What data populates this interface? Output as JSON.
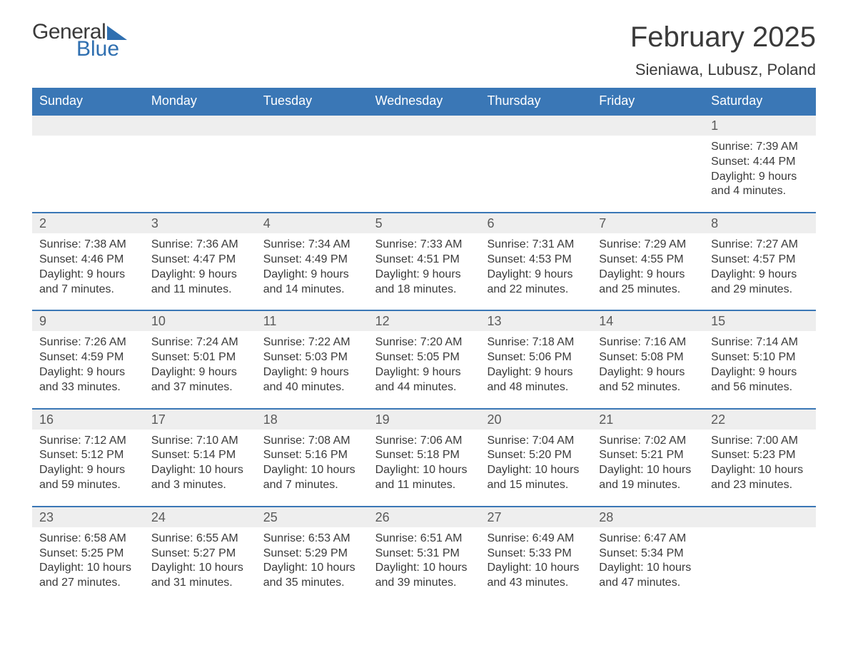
{
  "logo": {
    "text1": "General",
    "text2": "Blue"
  },
  "title": "February 2025",
  "location": "Sieniawa, Lubusz, Poland",
  "colors": {
    "header_bg": "#3a77b6",
    "header_text": "#ffffff",
    "daynum_bg": "#eeeeee",
    "daynum_border": "#3a77b6",
    "body_text": "#3a3a3a",
    "logo_blue": "#2f6fb0"
  },
  "days_of_week": [
    "Sunday",
    "Monday",
    "Tuesday",
    "Wednesday",
    "Thursday",
    "Friday",
    "Saturday"
  ],
  "weeks": [
    [
      {},
      {},
      {},
      {},
      {},
      {},
      {
        "n": "1",
        "sunrise": "Sunrise: 7:39 AM",
        "sunset": "Sunset: 4:44 PM",
        "daylight": "Daylight: 9 hours and 4 minutes."
      }
    ],
    [
      {
        "n": "2",
        "sunrise": "Sunrise: 7:38 AM",
        "sunset": "Sunset: 4:46 PM",
        "daylight": "Daylight: 9 hours and 7 minutes."
      },
      {
        "n": "3",
        "sunrise": "Sunrise: 7:36 AM",
        "sunset": "Sunset: 4:47 PM",
        "daylight": "Daylight: 9 hours and 11 minutes."
      },
      {
        "n": "4",
        "sunrise": "Sunrise: 7:34 AM",
        "sunset": "Sunset: 4:49 PM",
        "daylight": "Daylight: 9 hours and 14 minutes."
      },
      {
        "n": "5",
        "sunrise": "Sunrise: 7:33 AM",
        "sunset": "Sunset: 4:51 PM",
        "daylight": "Daylight: 9 hours and 18 minutes."
      },
      {
        "n": "6",
        "sunrise": "Sunrise: 7:31 AM",
        "sunset": "Sunset: 4:53 PM",
        "daylight": "Daylight: 9 hours and 22 minutes."
      },
      {
        "n": "7",
        "sunrise": "Sunrise: 7:29 AM",
        "sunset": "Sunset: 4:55 PM",
        "daylight": "Daylight: 9 hours and 25 minutes."
      },
      {
        "n": "8",
        "sunrise": "Sunrise: 7:27 AM",
        "sunset": "Sunset: 4:57 PM",
        "daylight": "Daylight: 9 hours and 29 minutes."
      }
    ],
    [
      {
        "n": "9",
        "sunrise": "Sunrise: 7:26 AM",
        "sunset": "Sunset: 4:59 PM",
        "daylight": "Daylight: 9 hours and 33 minutes."
      },
      {
        "n": "10",
        "sunrise": "Sunrise: 7:24 AM",
        "sunset": "Sunset: 5:01 PM",
        "daylight": "Daylight: 9 hours and 37 minutes."
      },
      {
        "n": "11",
        "sunrise": "Sunrise: 7:22 AM",
        "sunset": "Sunset: 5:03 PM",
        "daylight": "Daylight: 9 hours and 40 minutes."
      },
      {
        "n": "12",
        "sunrise": "Sunrise: 7:20 AM",
        "sunset": "Sunset: 5:05 PM",
        "daylight": "Daylight: 9 hours and 44 minutes."
      },
      {
        "n": "13",
        "sunrise": "Sunrise: 7:18 AM",
        "sunset": "Sunset: 5:06 PM",
        "daylight": "Daylight: 9 hours and 48 minutes."
      },
      {
        "n": "14",
        "sunrise": "Sunrise: 7:16 AM",
        "sunset": "Sunset: 5:08 PM",
        "daylight": "Daylight: 9 hours and 52 minutes."
      },
      {
        "n": "15",
        "sunrise": "Sunrise: 7:14 AM",
        "sunset": "Sunset: 5:10 PM",
        "daylight": "Daylight: 9 hours and 56 minutes."
      }
    ],
    [
      {
        "n": "16",
        "sunrise": "Sunrise: 7:12 AM",
        "sunset": "Sunset: 5:12 PM",
        "daylight": "Daylight: 9 hours and 59 minutes."
      },
      {
        "n": "17",
        "sunrise": "Sunrise: 7:10 AM",
        "sunset": "Sunset: 5:14 PM",
        "daylight": "Daylight: 10 hours and 3 minutes."
      },
      {
        "n": "18",
        "sunrise": "Sunrise: 7:08 AM",
        "sunset": "Sunset: 5:16 PM",
        "daylight": "Daylight: 10 hours and 7 minutes."
      },
      {
        "n": "19",
        "sunrise": "Sunrise: 7:06 AM",
        "sunset": "Sunset: 5:18 PM",
        "daylight": "Daylight: 10 hours and 11 minutes."
      },
      {
        "n": "20",
        "sunrise": "Sunrise: 7:04 AM",
        "sunset": "Sunset: 5:20 PM",
        "daylight": "Daylight: 10 hours and 15 minutes."
      },
      {
        "n": "21",
        "sunrise": "Sunrise: 7:02 AM",
        "sunset": "Sunset: 5:21 PM",
        "daylight": "Daylight: 10 hours and 19 minutes."
      },
      {
        "n": "22",
        "sunrise": "Sunrise: 7:00 AM",
        "sunset": "Sunset: 5:23 PM",
        "daylight": "Daylight: 10 hours and 23 minutes."
      }
    ],
    [
      {
        "n": "23",
        "sunrise": "Sunrise: 6:58 AM",
        "sunset": "Sunset: 5:25 PM",
        "daylight": "Daylight: 10 hours and 27 minutes."
      },
      {
        "n": "24",
        "sunrise": "Sunrise: 6:55 AM",
        "sunset": "Sunset: 5:27 PM",
        "daylight": "Daylight: 10 hours and 31 minutes."
      },
      {
        "n": "25",
        "sunrise": "Sunrise: 6:53 AM",
        "sunset": "Sunset: 5:29 PM",
        "daylight": "Daylight: 10 hours and 35 minutes."
      },
      {
        "n": "26",
        "sunrise": "Sunrise: 6:51 AM",
        "sunset": "Sunset: 5:31 PM",
        "daylight": "Daylight: 10 hours and 39 minutes."
      },
      {
        "n": "27",
        "sunrise": "Sunrise: 6:49 AM",
        "sunset": "Sunset: 5:33 PM",
        "daylight": "Daylight: 10 hours and 43 minutes."
      },
      {
        "n": "28",
        "sunrise": "Sunrise: 6:47 AM",
        "sunset": "Sunset: 5:34 PM",
        "daylight": "Daylight: 10 hours and 47 minutes."
      },
      {}
    ]
  ]
}
